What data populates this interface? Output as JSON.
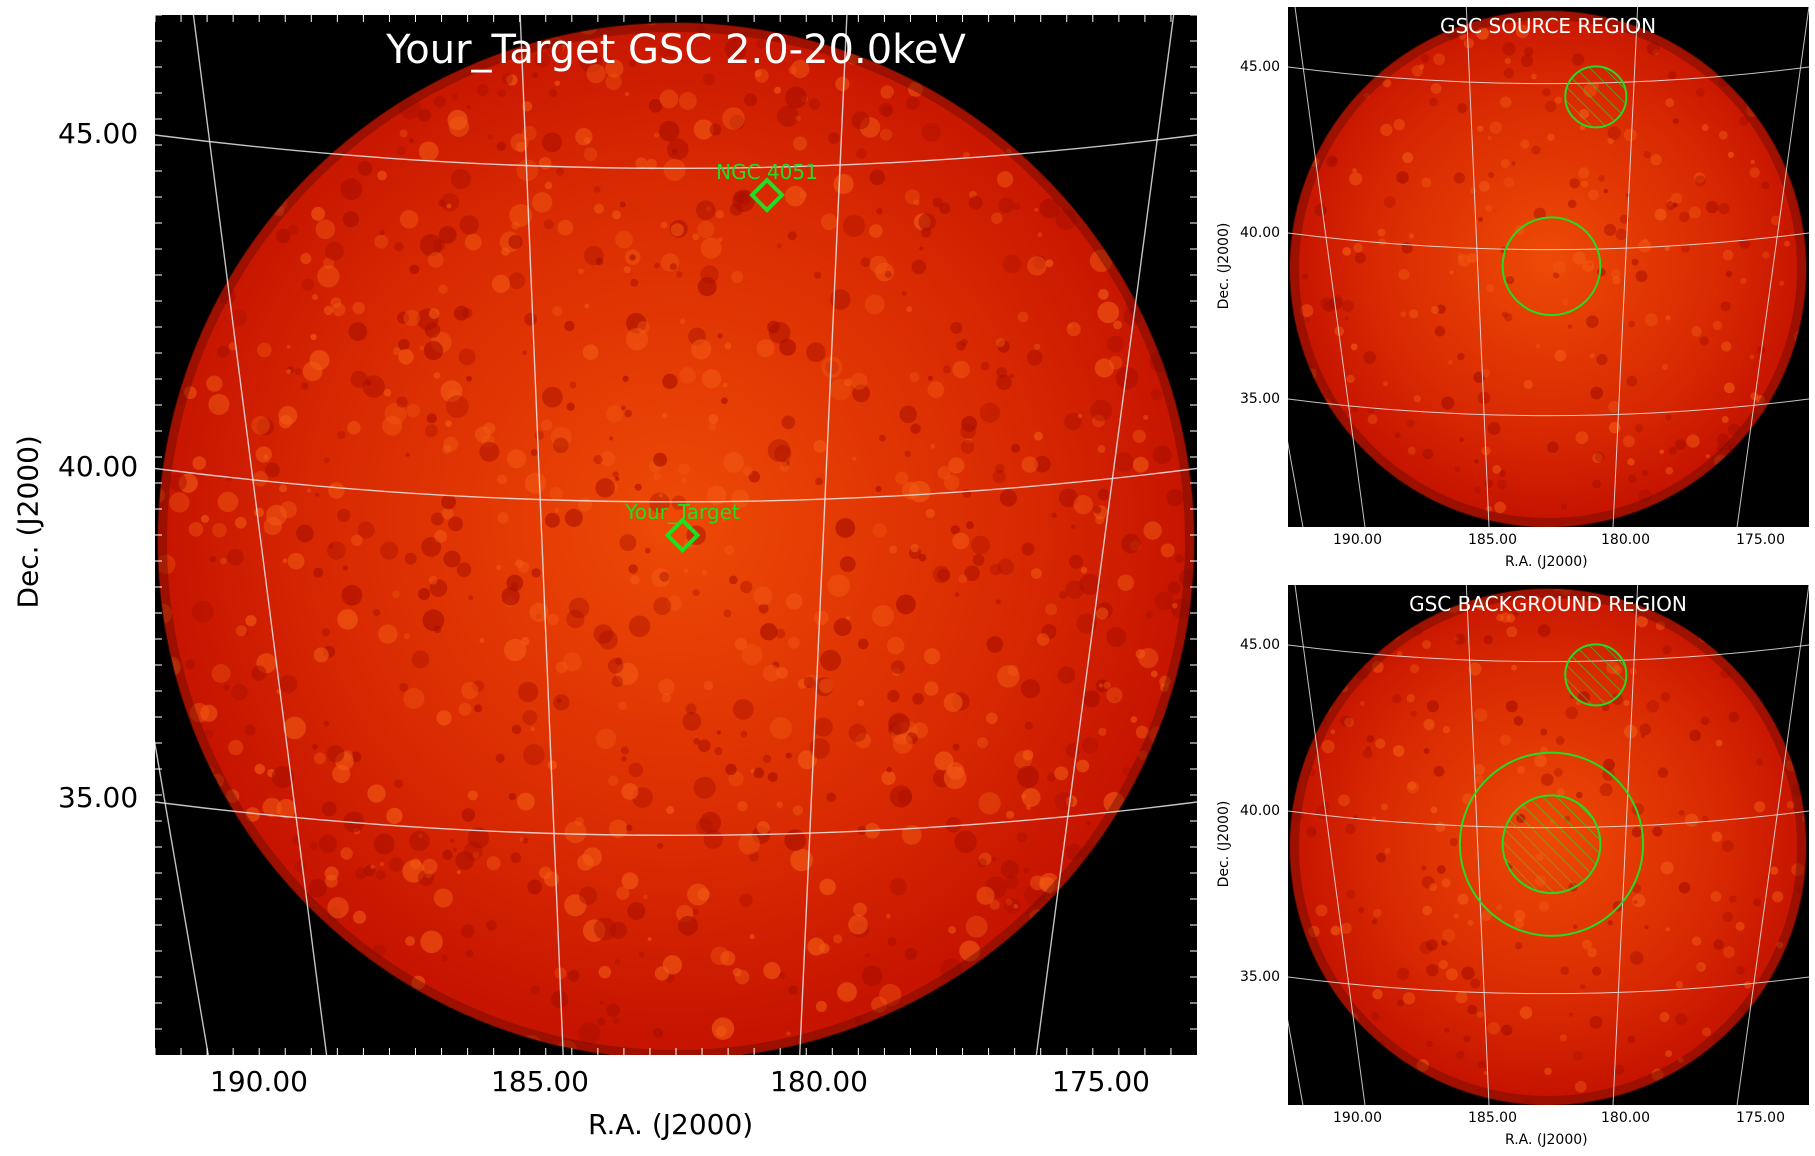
{
  "chart_data": [
    {
      "type": "heatmap",
      "title": "Your_Target GSC 2.0-20.0keV",
      "xlabel": "R.A. (J2000)",
      "ylabel": "Dec. (J2000)",
      "xlim": [
        191.9,
        176.8
      ],
      "ylim": [
        31.9,
        46.9
      ],
      "x_ticks": [
        "190.00",
        "185.00",
        "180.00",
        "175.00"
      ],
      "y_ticks": [
        "45.00",
        "40.00",
        "35.00"
      ],
      "colormap": "hot",
      "grid": true,
      "sources": [
        {
          "label": "NGC 4051",
          "ra": 181.0,
          "dec": 44.1,
          "marker": "diamond"
        },
        {
          "label": "Your_Target",
          "ra": 182.5,
          "dec": 39.0,
          "marker": "diamond"
        }
      ],
      "marker_color": "#22dd22"
    },
    {
      "type": "heatmap",
      "title": "GSC SOURCE REGION",
      "xlabel": "R.A. (J2000)",
      "ylabel": "Dec. (J2000)",
      "x_ticks": [
        "190.00",
        "185.00",
        "180.00",
        "175.00"
      ],
      "y_ticks": [
        "45.00",
        "40.00",
        "35.00"
      ],
      "regions": [
        {
          "shape": "circle",
          "ra": 182.5,
          "dec": 39.0,
          "radius_deg": 1.6,
          "hatched": false
        },
        {
          "shape": "circle",
          "ra": 181.0,
          "dec": 44.1,
          "radius_deg": 1.0,
          "hatched": true
        }
      ]
    },
    {
      "type": "heatmap",
      "title": "GSC BACKGROUND REGION",
      "xlabel": "R.A. (J2000)",
      "ylabel": "Dec. (J2000)",
      "x_ticks": [
        "190.00",
        "185.00",
        "180.00",
        "175.00"
      ],
      "y_ticks": [
        "45.00",
        "40.00",
        "35.00"
      ],
      "regions": [
        {
          "shape": "circle",
          "ra": 182.5,
          "dec": 39.0,
          "radius_deg": 3.0,
          "hatched": false
        },
        {
          "shape": "circle",
          "ra": 182.5,
          "dec": 39.0,
          "radius_deg": 1.6,
          "hatched": true
        },
        {
          "shape": "circle",
          "ra": 181.0,
          "dec": 44.1,
          "radius_deg": 1.0,
          "hatched": true
        }
      ]
    }
  ],
  "colors": {
    "background": "#000000",
    "disk_outer": "#c61400",
    "disk_inner": "#ee4a06",
    "grid": "#e6e6e6",
    "marker": "#22dd22",
    "title_text": "#ffffff"
  }
}
